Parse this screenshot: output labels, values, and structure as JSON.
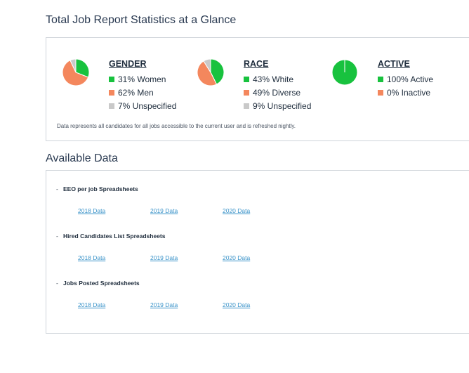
{
  "stats_section": {
    "title": "Total Job Report Statistics at a Glance",
    "note": "Data represents all candidates for all jobs accessible to the current user and is refreshed nightly."
  },
  "stats": [
    {
      "heading": "GENDER",
      "items": [
        {
          "label": "31% Women",
          "value": 31,
          "color": "#18c23e"
        },
        {
          "label": "62% Men",
          "value": 62,
          "color": "#f4875d"
        },
        {
          "label": "7% Unspecified",
          "value": 7,
          "color": "#c9c9c9"
        }
      ]
    },
    {
      "heading": "RACE",
      "items": [
        {
          "label": "43% White",
          "value": 43,
          "color": "#18c23e"
        },
        {
          "label": "49% Diverse",
          "value": 49,
          "color": "#f4875d"
        },
        {
          "label": "9% Unspecified",
          "value": 9,
          "color": "#c9c9c9"
        }
      ]
    },
    {
      "heading": "ACTIVE",
      "items": [
        {
          "label": "100% Active",
          "value": 100,
          "color": "#18c23e"
        },
        {
          "label": "0% Inactive",
          "value": 0,
          "color": "#f4875d"
        }
      ]
    }
  ],
  "available_section": {
    "title": "Available Data",
    "groups": [
      {
        "title": "EEO per job Spreadsheets",
        "links": [
          "2018 Data",
          "2019 Data",
          "2020 Data"
        ]
      },
      {
        "title": "Hired Candidates List Spreadsheets",
        "links": [
          "2018 Data",
          "2019 Data",
          "2020 Data"
        ]
      },
      {
        "title": "Jobs Posted Spreadsheets",
        "links": [
          "2018 Data",
          "2019 Data",
          "2020 Data"
        ]
      }
    ]
  }
}
